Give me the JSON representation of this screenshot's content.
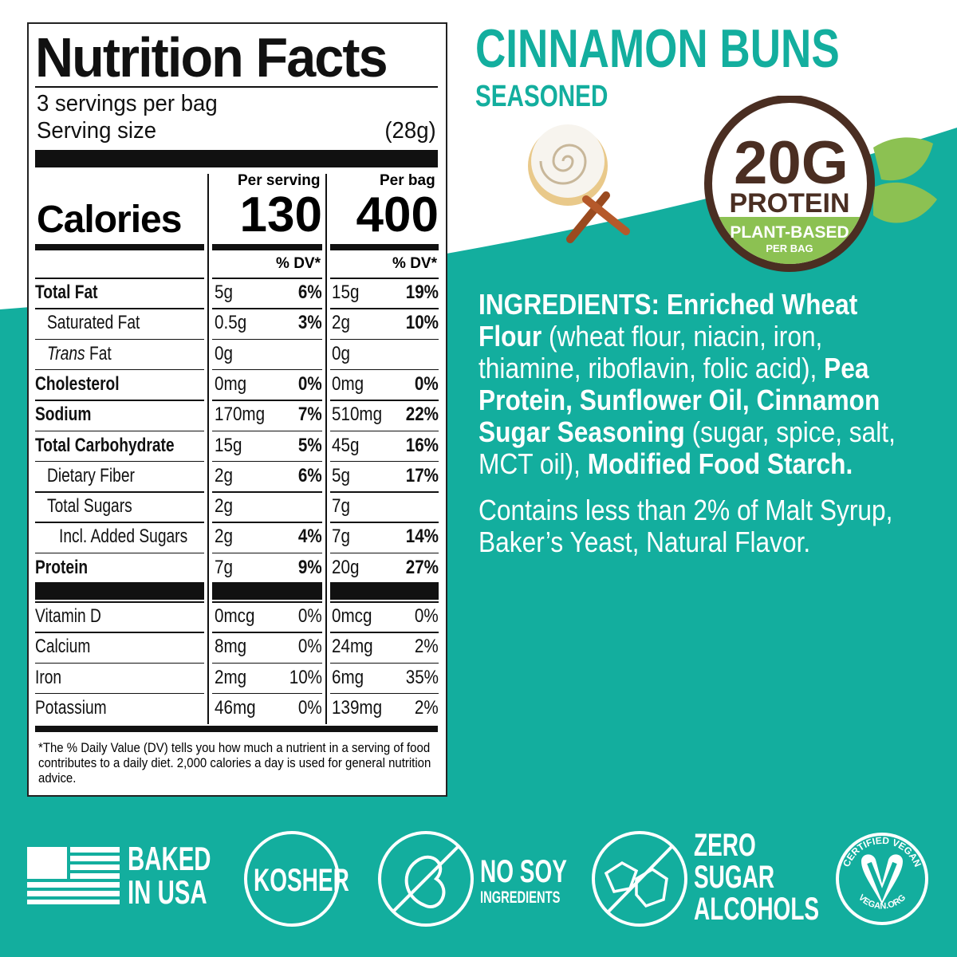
{
  "colors": {
    "teal": "#13ae9e",
    "brown": "#4a2e22",
    "green": "#8cc152",
    "text": "#111111"
  },
  "label": {
    "title": "Nutrition Facts",
    "servings": "3 servings per bag",
    "serving_size_label": "Serving size",
    "serving_size_value": "(28g)",
    "calories_label": "Calories",
    "per_serving_header": "Per serving",
    "per_bag_header": "Per bag",
    "calories_serving": "130",
    "calories_bag": "400",
    "dv_header": "% DV*",
    "nutrients": [
      {
        "name": "Total Fat",
        "bold": true,
        "indent": 0,
        "s_amt": "5g",
        "s_dv": "6%",
        "b_amt": "15g",
        "b_dv": "19%"
      },
      {
        "name": "Saturated Fat",
        "indent": 1,
        "s_amt": "0.5g",
        "s_dv": "3%",
        "b_amt": "2g",
        "b_dv": "10%"
      },
      {
        "name": "Trans Fat",
        "italic_first": true,
        "indent": 1,
        "s_amt": "0g",
        "s_dv": "",
        "b_amt": "0g",
        "b_dv": ""
      },
      {
        "name": "Cholesterol",
        "bold": true,
        "indent": 0,
        "s_amt": "0mg",
        "s_dv": "0%",
        "b_amt": "0mg",
        "b_dv": "0%"
      },
      {
        "name": "Sodium",
        "bold": true,
        "indent": 0,
        "s_amt": "170mg",
        "s_dv": "7%",
        "b_amt": "510mg",
        "b_dv": "22%"
      },
      {
        "name": "Total Carbohydrate",
        "bold": true,
        "indent": 0,
        "s_amt": "15g",
        "s_dv": "5%",
        "b_amt": "45g",
        "b_dv": "16%"
      },
      {
        "name": "Dietary Fiber",
        "indent": 1,
        "s_amt": "2g",
        "s_dv": "6%",
        "b_amt": "5g",
        "b_dv": "17%"
      },
      {
        "name": "Total Sugars",
        "indent": 1,
        "s_amt": "2g",
        "s_dv": "",
        "b_amt": "7g",
        "b_dv": ""
      },
      {
        "name": "Incl. Added Sugars",
        "indent": 2,
        "s_amt": "2g",
        "s_dv": "4%",
        "b_amt": "7g",
        "b_dv": "14%"
      },
      {
        "name": "Protein",
        "bold": true,
        "indent": 0,
        "s_amt": "7g",
        "s_dv": "9%",
        "b_amt": "20g",
        "b_dv": "27%"
      }
    ],
    "vitamins": [
      {
        "name": "Vitamin D",
        "s_amt": "0mcg",
        "s_dv": "0%",
        "b_amt": "0mcg",
        "b_dv": "0%"
      },
      {
        "name": "Calcium",
        "s_amt": "8mg",
        "s_dv": "0%",
        "b_amt": "24mg",
        "b_dv": "2%"
      },
      {
        "name": "Iron",
        "s_amt": "2mg",
        "s_dv": "10%",
        "b_amt": "6mg",
        "b_dv": "35%"
      },
      {
        "name": "Potassium",
        "s_amt": "46mg",
        "s_dv": "0%",
        "b_amt": "139mg",
        "b_dv": "2%"
      }
    ],
    "footnote": "*The % Daily Value (DV) tells you how much a nutrient in a serving of food contributes to a daily diet. 2,000 calories a day is used for general nutrition advice."
  },
  "product": {
    "name": "CINNAMON BUNS",
    "subtitle": "SEASONED"
  },
  "protein_badge": {
    "amount": "20G",
    "label": "PROTEIN",
    "plant": "PLANT-BASED",
    "per": "PER BAG"
  },
  "ingredients": [
    {
      "t": "INGREDIENTS: Enriched Wheat Flour",
      "b": true
    },
    {
      "t": " (wheat flour, niacin, iron, thiamine, riboflavin, folic acid), ",
      "b": false
    },
    {
      "t": "Pea Protein, Sunflower Oil, Cinnamon Sugar Seasoning",
      "b": true
    },
    {
      "t": " (sugar, spice, salt, MCT oil), ",
      "b": false
    },
    {
      "t": "Modified Food Starch.",
      "b": true
    }
  ],
  "contains": "Contains less than 2% of Malt Syrup, Baker’s Yeast, Natural Flavor.",
  "badges": {
    "usa": [
      "BAKED",
      "IN USA"
    ],
    "kosher": "KOSHER",
    "nosoy": [
      "NO SOY",
      "INGREDIENTS"
    ],
    "zero": [
      "ZERO",
      "SUGAR",
      "ALCOHOLS"
    ],
    "vegan_logo_text": [
      "CERTIFIED VEGAN",
      "VEGAN.ORG"
    ]
  }
}
